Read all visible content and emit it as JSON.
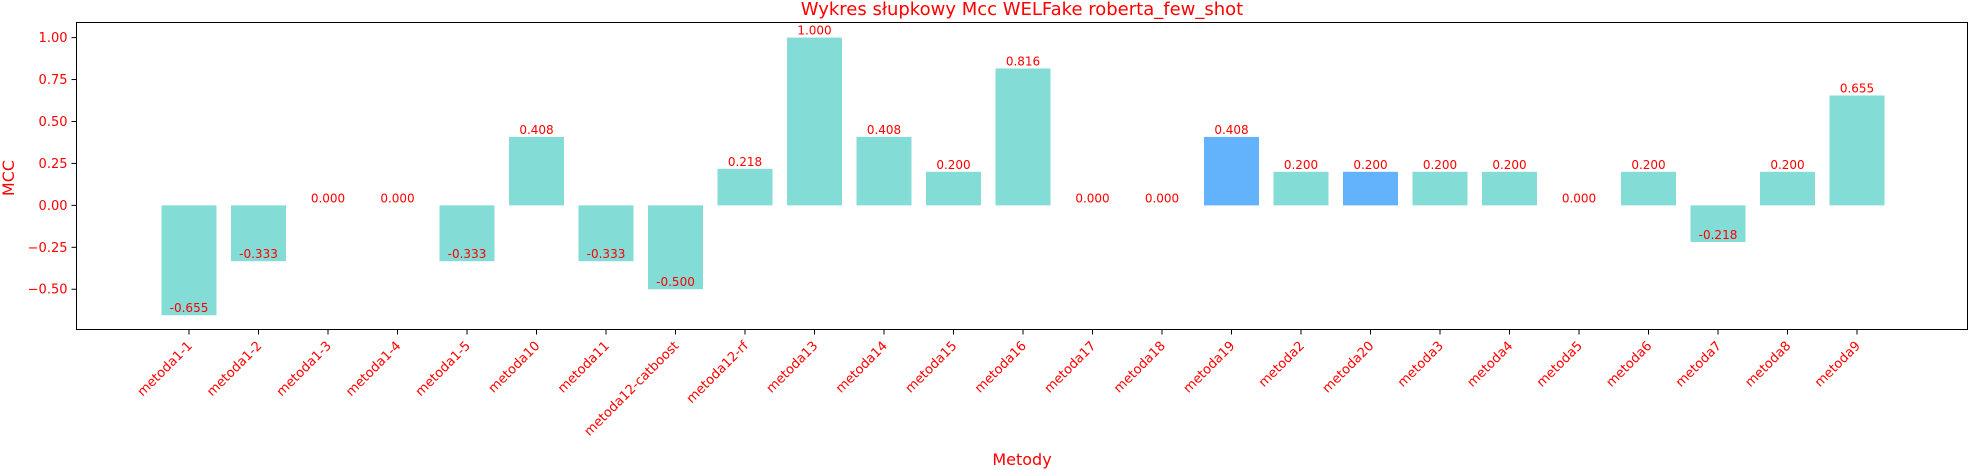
{
  "chart_data": {
    "type": "bar",
    "title": "Wykres słupkowy Mcc WELFake roberta_few_shot",
    "xlabel": "Metody",
    "ylabel": "MCC",
    "ylim": [
      -0.74,
      1.09
    ],
    "yticks": [
      -0.5,
      -0.25,
      0.0,
      0.25,
      0.5,
      0.75,
      1.0
    ],
    "ytick_labels": [
      "−0.50",
      "−0.25",
      "0.00",
      "0.25",
      "0.50",
      "0.75",
      "1.00"
    ],
    "grid": false,
    "categories": [
      "metoda1-1",
      "metoda1-2",
      "metoda1-3",
      "metoda1-4",
      "metoda1-5",
      "metoda10",
      "metoda11",
      "metoda12-catboost",
      "metoda12-rf",
      "metoda13",
      "metoda14",
      "metoda15",
      "metoda16",
      "metoda17",
      "metoda18",
      "metoda19",
      "metoda2",
      "metoda20",
      "metoda3",
      "metoda4",
      "metoda5",
      "metoda6",
      "metoda7",
      "metoda8",
      "metoda9"
    ],
    "values": [
      -0.655,
      -0.333,
      0.0,
      0.0,
      -0.333,
      0.408,
      -0.333,
      -0.5,
      0.218,
      1.0,
      0.408,
      0.2,
      0.816,
      0.0,
      0.0,
      0.408,
      0.2,
      0.2,
      0.2,
      0.2,
      0.0,
      0.2,
      -0.218,
      0.2,
      0.655
    ],
    "value_labels": [
      "-0.655",
      "-0.333",
      "0.000",
      "0.000",
      "-0.333",
      "0.408",
      "-0.333",
      "-0.500",
      "0.218",
      "1.000",
      "0.408",
      "0.200",
      "0.816",
      "0.000",
      "0.000",
      "0.408",
      "0.200",
      "0.200",
      "0.200",
      "0.200",
      "0.000",
      "0.200",
      "-0.218",
      "0.200",
      "0.655"
    ],
    "highlighted": [
      "metoda19",
      "metoda20"
    ],
    "colors": {
      "bar": "#84dcd6",
      "highlight": "#62b2fc",
      "text": "#ff0000",
      "axis": "#000000"
    }
  }
}
